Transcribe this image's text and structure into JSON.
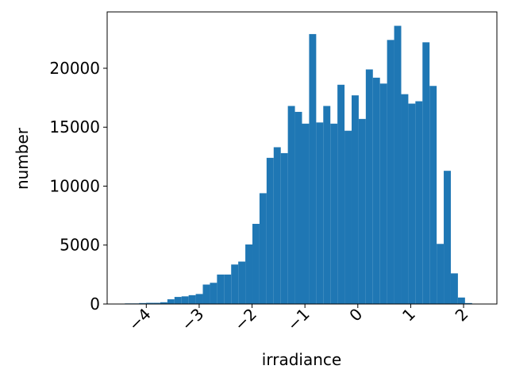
{
  "chart_data": {
    "type": "histogram",
    "xlabel": "irradiance",
    "ylabel": "number",
    "color": "#1f77b4",
    "bins": [
      -4.405,
      -4.271,
      -4.137,
      -4.003,
      -3.869,
      -3.735,
      -3.601,
      -3.467,
      -3.333,
      -3.199,
      -3.065,
      -2.931,
      -2.797,
      -2.663,
      -2.529,
      -2.395,
      -2.261,
      -2.127,
      -1.993,
      -1.859,
      -1.725,
      -1.591,
      -1.457,
      -1.323,
      -1.189,
      -1.055,
      -0.921,
      -0.787,
      -0.653,
      -0.519,
      -0.385,
      -0.251,
      -0.117,
      0.017,
      0.151,
      0.285,
      0.419,
      0.553,
      0.687,
      0.821,
      0.955,
      1.089,
      1.223,
      1.357,
      1.491,
      1.625,
      1.759,
      1.893,
      2.027,
      2.161,
      2.295
    ],
    "values": [
      50,
      50,
      80,
      100,
      100,
      150,
      400,
      600,
      650,
      750,
      850,
      1650,
      1800,
      2500,
      2500,
      3350,
      3600,
      5050,
      6800,
      9400,
      12400,
      13300,
      12800,
      16800,
      16300,
      15300,
      22900,
      15400,
      16800,
      15300,
      18600,
      14700,
      17700,
      15700,
      19900,
      19200,
      18700,
      22400,
      23600,
      17800,
      17000,
      17200,
      22200,
      18500,
      5100,
      11300,
      2600,
      550,
      80,
      10
    ],
    "xlim": [
      -4.74,
      2.63
    ],
    "ylim": [
      0,
      24780
    ],
    "xticks": [
      {
        "value": -4,
        "label": "−4"
      },
      {
        "value": -3,
        "label": "−3"
      },
      {
        "value": -2,
        "label": "−2"
      },
      {
        "value": -1,
        "label": "−1"
      },
      0,
      1,
      2
    ],
    "yticks": [
      0,
      5000,
      10000,
      15000,
      20000
    ],
    "grid": false
  }
}
